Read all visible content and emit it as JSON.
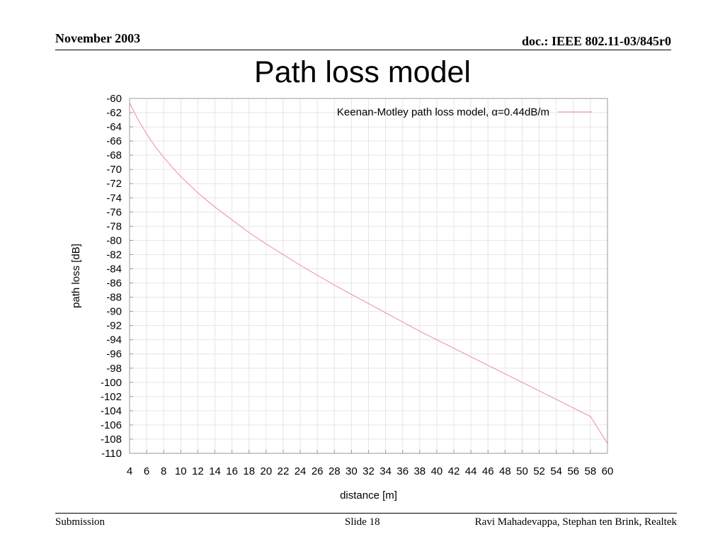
{
  "header": {
    "date": "November 2003",
    "doc": "doc.: IEEE 802.11-03/845r0"
  },
  "slide_title": "Path loss model",
  "footer": {
    "left": "Submission",
    "center": "Slide 18",
    "right": "Ravi Mahadevappa, Stephan ten Brink, Realtek"
  },
  "colors": {
    "series": "#f08a9a",
    "grid": "#e6e6e6",
    "frame": "#9a9a9a"
  },
  "chart_data": {
    "type": "line",
    "title": "",
    "xlabel": "distance [m]",
    "ylabel": "path loss [dB]",
    "xlim": [
      4,
      60
    ],
    "ylim": [
      -110,
      -60
    ],
    "xticks": [
      4,
      6,
      8,
      10,
      12,
      14,
      16,
      18,
      20,
      22,
      24,
      26,
      28,
      30,
      32,
      34,
      36,
      38,
      40,
      42,
      44,
      46,
      48,
      50,
      52,
      54,
      56,
      58,
      60
    ],
    "yticks": [
      -60,
      -62,
      -64,
      -66,
      -68,
      -70,
      -72,
      -74,
      -76,
      -78,
      -80,
      -82,
      -84,
      -86,
      -88,
      -90,
      -92,
      -94,
      -96,
      -98,
      -100,
      -102,
      -104,
      -106,
      -108,
      -110
    ],
    "grid": true,
    "legend_position": "top-right",
    "series": [
      {
        "name": "Keenan-Motley path loss model, α=0.44dB/m",
        "x": [
          4,
          5,
          6,
          7,
          8,
          9,
          10,
          12,
          14,
          16,
          18,
          20,
          22,
          24,
          26,
          28,
          30,
          32,
          34,
          36,
          38,
          40,
          42,
          44,
          46,
          48,
          50,
          52,
          54,
          56,
          58,
          60
        ],
        "y": [
          -60.6,
          -63.0,
          -65.0,
          -66.8,
          -68.3,
          -69.7,
          -71.0,
          -73.3,
          -75.3,
          -77.1,
          -78.9,
          -80.5,
          -82.0,
          -83.5,
          -84.9,
          -86.3,
          -87.6,
          -88.9,
          -90.2,
          -91.5,
          -92.8,
          -94.0,
          -95.2,
          -96.4,
          -97.6,
          -98.8,
          -100.0,
          -101.2,
          -102.4,
          -103.6,
          -104.8,
          -108.6
        ]
      }
    ]
  }
}
